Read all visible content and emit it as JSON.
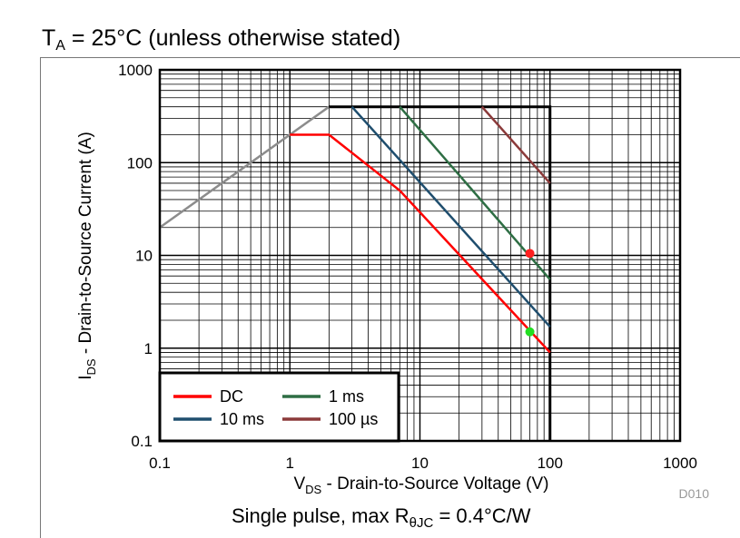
{
  "header": {
    "prefix": "T",
    "sub": "A",
    "rest": " = 25°C (unless otherwise stated)"
  },
  "footer": {
    "prefix": "Single pulse, max R",
    "sub": "θJC",
    "rest": " = 0.4°C/W"
  },
  "chart_data": {
    "type": "line",
    "title": "",
    "xlabel": {
      "main": "V",
      "sub": "DS",
      "rest": " - Drain-to-Source Voltage (V)"
    },
    "ylabel": {
      "main": "I",
      "sub": "DS",
      "rest": " - Drain-to-Source Current (A)"
    },
    "xscale": "log",
    "yscale": "log",
    "xlim": [
      0.1,
      1000
    ],
    "ylim": [
      0.1,
      1000
    ],
    "xticks": [
      "0.1",
      "1",
      "10",
      "100",
      "1000"
    ],
    "yticks": [
      "0.1",
      "1",
      "10",
      "100",
      "1000"
    ],
    "grid": true,
    "figure_id": "D010",
    "legend_position": "bottom-left",
    "series": [
      {
        "name": "DC",
        "color": "#ff0000",
        "x": [
          1,
          2,
          7,
          100
        ],
        "y": [
          200,
          200,
          50,
          0.9
        ]
      },
      {
        "name": "10 ms",
        "color": "#1f4e6e",
        "x": [
          3,
          100
        ],
        "y": [
          400,
          1.7
        ]
      },
      {
        "name": "1 ms",
        "color": "#2e6e44",
        "x": [
          7,
          100
        ],
        "y": [
          400,
          5.5
        ]
      },
      {
        "name": "100 µs",
        "color": "#8b3a3a",
        "x": [
          30,
          100
        ],
        "y": [
          400,
          60
        ]
      }
    ],
    "limits": [
      {
        "kind": "rds_on_limit",
        "color": "#8c8c8c",
        "x": [
          0.1,
          2
        ],
        "y": [
          20,
          400
        ]
      },
      {
        "kind": "soa_boundary",
        "color": "#000000",
        "x": [
          2,
          100,
          100
        ],
        "y": [
          400,
          400,
          0.1
        ]
      }
    ],
    "markers": [
      {
        "color": "#ff2020",
        "x": 70,
        "y": 10.5
      },
      {
        "color": "#22dd22",
        "x": 70,
        "y": 1.5
      }
    ]
  }
}
